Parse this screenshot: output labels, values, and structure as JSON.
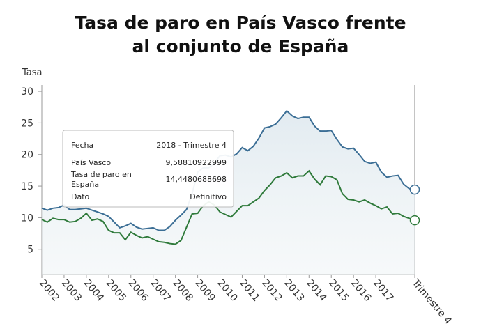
{
  "chart_data": {
    "type": "line",
    "title": "Tasa de paro en País Vasco frente al conjunto de España",
    "y_label": "Tasa",
    "categories": [
      "2002",
      null,
      null,
      null,
      "2003",
      null,
      null,
      null,
      "2004",
      null,
      null,
      null,
      "2005",
      null,
      null,
      null,
      "2006",
      null,
      null,
      null,
      "2007",
      null,
      null,
      null,
      "2008",
      null,
      null,
      null,
      "2009",
      null,
      null,
      null,
      "2010",
      null,
      null,
      null,
      "2011",
      null,
      null,
      null,
      "2012",
      null,
      null,
      null,
      "2013",
      null,
      null,
      null,
      "2014",
      null,
      null,
      null,
      "2015",
      null,
      null,
      null,
      "2016",
      null,
      null,
      null,
      "2017",
      null,
      null,
      null,
      null,
      null,
      null,
      "Trimestre 4"
    ],
    "series": [
      {
        "name": "Tasa de paro en España",
        "color": "#3b6e95",
        "values": [
          11.5,
          11.2,
          11.5,
          11.6,
          12.0,
          11.3,
          11.3,
          11.4,
          11.5,
          11.2,
          10.9,
          10.6,
          10.2,
          9.3,
          8.4,
          8.7,
          9.1,
          8.5,
          8.2,
          8.3,
          8.4,
          8.0,
          8.0,
          8.6,
          9.6,
          10.4,
          11.3,
          13.8,
          17.2,
          17.9,
          17.9,
          18.7,
          19.8,
          19.9,
          19.6,
          20.1,
          21.1,
          20.6,
          21.3,
          22.6,
          24.2,
          24.4,
          24.8,
          25.8,
          26.9,
          26.1,
          25.7,
          25.9,
          25.9,
          24.5,
          23.7,
          23.7,
          23.8,
          22.4,
          21.2,
          20.9,
          21.0,
          20.0,
          18.9,
          18.6,
          18.8,
          17.2,
          16.4,
          16.6,
          16.7,
          15.3,
          14.6,
          14.4480688698
        ]
      },
      {
        "name": "País Vasco",
        "color": "#2f7a3b",
        "values": [
          9.7,
          9.3,
          9.9,
          9.7,
          9.7,
          9.3,
          9.4,
          9.9,
          10.7,
          9.6,
          9.8,
          9.4,
          8.0,
          7.6,
          7.6,
          6.5,
          7.7,
          7.2,
          6.8,
          7.0,
          6.6,
          6.2,
          6.1,
          5.9,
          5.8,
          6.4,
          8.5,
          10.6,
          10.7,
          11.9,
          12.5,
          12.0,
          10.9,
          10.5,
          10.1,
          11.0,
          11.9,
          11.9,
          12.5,
          13.1,
          14.3,
          15.2,
          16.3,
          16.6,
          17.1,
          16.3,
          16.6,
          16.6,
          17.4,
          16.1,
          15.2,
          16.6,
          16.5,
          16.0,
          13.8,
          12.9,
          12.8,
          12.5,
          12.8,
          12.3,
          11.9,
          11.4,
          11.7,
          10.6,
          10.7,
          10.2,
          9.9,
          9.58810922999
        ]
      }
    ],
    "ylim": [
      1,
      31
    ],
    "yticks": [
      5,
      10,
      15,
      20,
      25,
      30
    ],
    "tooltip": {
      "rows": [
        {
          "label": "Fecha",
          "value": "2018 - Trimestre 4"
        },
        {
          "label": "País Vasco",
          "value": "9,58810922999"
        },
        {
          "label": "Tasa de paro en España",
          "value": "14,4480688698"
        },
        {
          "label": "Dato",
          "value": "Definitivo"
        }
      ]
    }
  }
}
